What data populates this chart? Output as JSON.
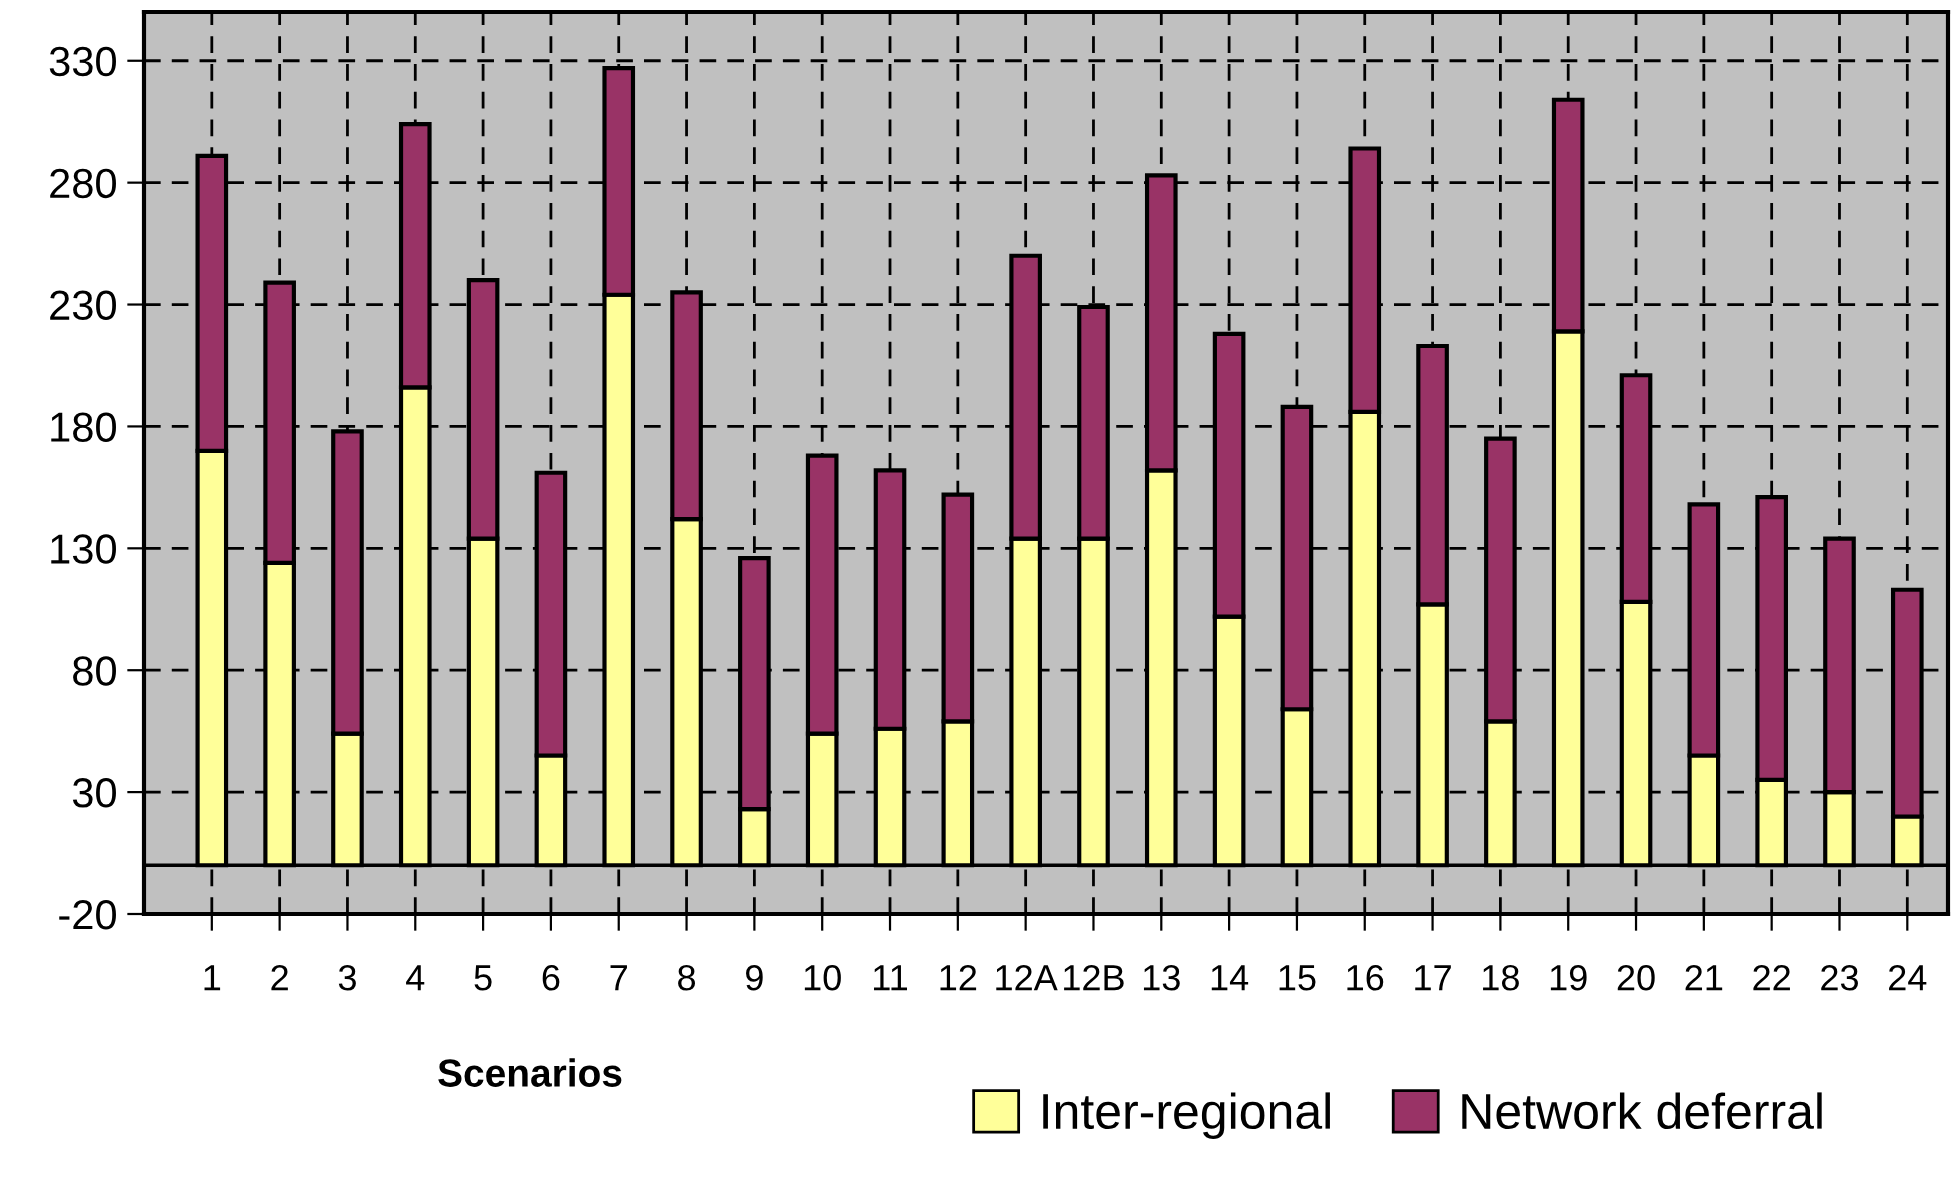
{
  "chart_data": {
    "type": "bar",
    "stacked": true,
    "xlabel": "Scenarios",
    "categories": [
      "1",
      "2",
      "3",
      "4",
      "5",
      "6",
      "7",
      "8",
      "9",
      "10",
      "11",
      "12",
      "12A",
      "12B",
      "13",
      "14",
      "15",
      "16",
      "17",
      "18",
      "19",
      "20",
      "21",
      "22",
      "23",
      "24"
    ],
    "series": [
      {
        "name": "Inter-regional",
        "color": "#ffff99",
        "values": [
          170,
          124,
          54,
          196,
          134,
          45,
          234,
          142,
          23,
          54,
          56,
          59,
          134,
          134,
          162,
          102,
          64,
          186,
          107,
          59,
          219,
          108,
          45,
          35,
          30,
          20
        ]
      },
      {
        "name": "Network deferral",
        "color": "#993366",
        "values": [
          121,
          115,
          124,
          108,
          106,
          116,
          93,
          93,
          103,
          114,
          106,
          93,
          116,
          95,
          121,
          116,
          124,
          108,
          106,
          116,
          95,
          93,
          103,
          116,
          104,
          93
        ]
      }
    ],
    "ylim": [
      -20,
      350
    ],
    "yticks": [
      -20,
      30,
      80,
      130,
      180,
      230,
      280,
      330
    ],
    "ref_lines": [
      {
        "axis": "y",
        "value": 0,
        "color": "#000000",
        "line_style": "solid"
      }
    ],
    "grid": true,
    "legend": "bottom right"
  }
}
